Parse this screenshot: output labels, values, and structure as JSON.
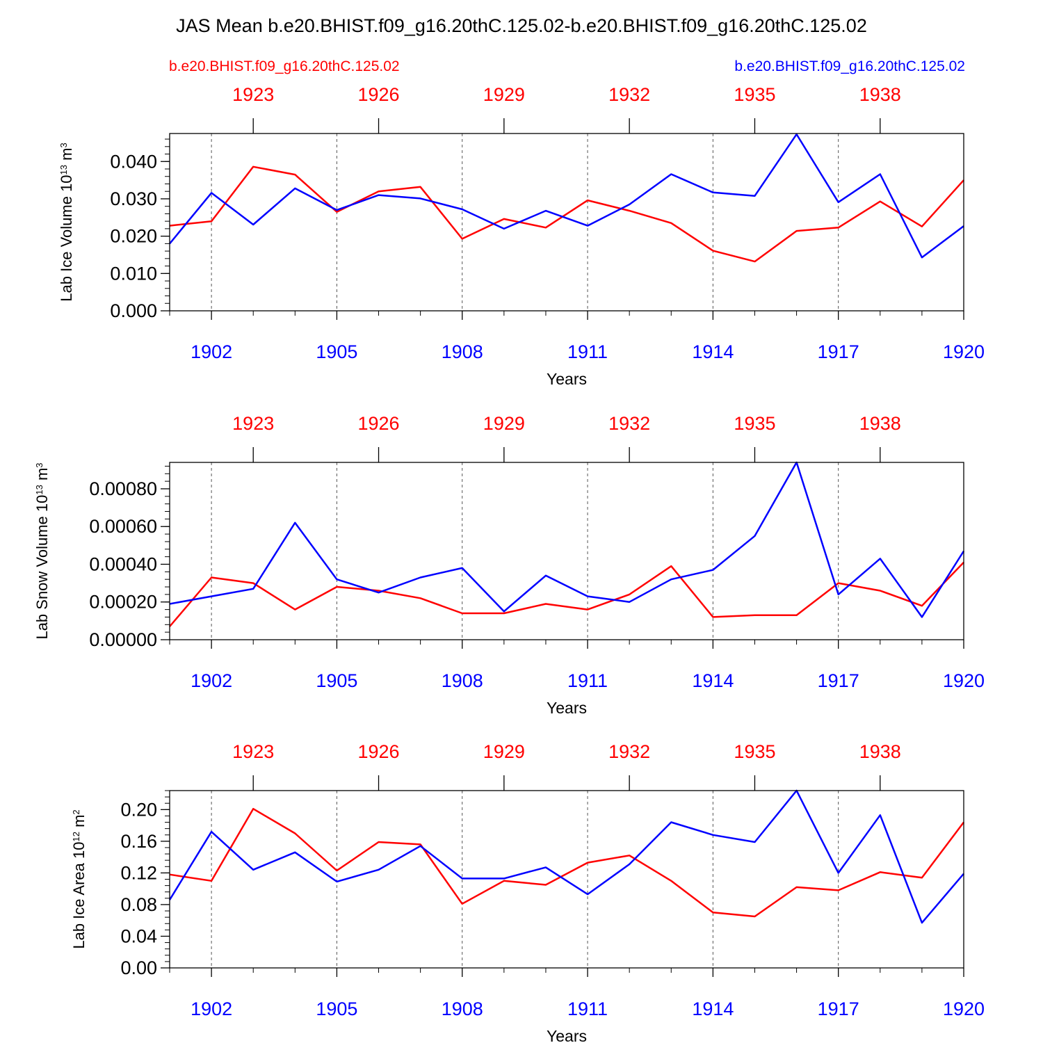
{
  "title": "JAS Mean b.e20.BHIST.f09_g16.20thC.125.02-b.e20.BHIST.f09_g16.20thC.125.02",
  "legend": {
    "left": "b.e20.BHIST.f09_g16.20thC.125.02",
    "right": "b.e20.BHIST.f09_g16.20thC.125.02"
  },
  "colors": {
    "red_series": "#ff0000",
    "blue_series": "#0000ff"
  },
  "chart_data": [
    {
      "type": "line",
      "ylabel": "Lab Ice Volume",
      "yunit_base": "10",
      "yunit_exp": "13",
      "yunit_unit": "m",
      "yunit_unit_exp": "3",
      "xlabel": "Years",
      "xlim": [
        1901,
        1920
      ],
      "ylim": [
        0,
        0.0475
      ],
      "yticks": [
        0.0,
        0.01,
        0.02,
        0.03,
        0.04
      ],
      "yticklabels": [
        "0.000",
        "0.010",
        "0.020",
        "0.030",
        "0.040"
      ],
      "yminor_step": 0.002,
      "xticks_bottom": [
        "1902",
        "1905",
        "1908",
        "1911",
        "1914",
        "1917",
        "1920"
      ],
      "xticks_top": [
        "1923",
        "1926",
        "1929",
        "1932",
        "1935",
        "1938"
      ],
      "x": [
        1901,
        1902,
        1903,
        1904,
        1905,
        1906,
        1907,
        1908,
        1909,
        1910,
        1911,
        1912,
        1913,
        1914,
        1915,
        1916,
        1917,
        1918,
        1919,
        1920
      ],
      "series": [
        {
          "name": "b.e20.BHIST.f09_g16.20thC.125.02 (1921-1940)",
          "color": "red",
          "values": [
            0.0228,
            0.024,
            0.0386,
            0.0365,
            0.0265,
            0.032,
            0.0332,
            0.0193,
            0.0246,
            0.0223,
            0.0296,
            0.0268,
            0.0235,
            0.0161,
            0.0132,
            0.0214,
            0.0223,
            0.0293,
            0.0226,
            0.035
          ]
        },
        {
          "name": "b.e20.BHIST.f09_g16.20thC.125.02 (1901-1920)",
          "color": "blue",
          "values": [
            0.018,
            0.0316,
            0.0231,
            0.0328,
            0.027,
            0.031,
            0.0301,
            0.0272,
            0.022,
            0.0268,
            0.0228,
            0.0285,
            0.0366,
            0.0317,
            0.0308,
            0.0473,
            0.0291,
            0.0366,
            0.0143,
            0.0227
          ]
        }
      ]
    },
    {
      "type": "line",
      "ylabel": "Lab Snow Volume",
      "yunit_base": "10",
      "yunit_exp": "13",
      "yunit_unit": "m",
      "yunit_unit_exp": "3",
      "xlabel": "Years",
      "xlim": [
        1901,
        1920
      ],
      "ylim": [
        0,
        0.00094
      ],
      "yticks": [
        0.0,
        0.0002,
        0.0004,
        0.0006,
        0.0008
      ],
      "yticklabels": [
        "0.00000",
        "0.00020",
        "0.00040",
        "0.00060",
        "0.00080"
      ],
      "yminor_step": 4e-05,
      "xticks_bottom": [
        "1902",
        "1905",
        "1908",
        "1911",
        "1914",
        "1917",
        "1920"
      ],
      "xticks_top": [
        "1923",
        "1926",
        "1929",
        "1932",
        "1935",
        "1938"
      ],
      "x": [
        1901,
        1902,
        1903,
        1904,
        1905,
        1906,
        1907,
        1908,
        1909,
        1910,
        1911,
        1912,
        1913,
        1914,
        1915,
        1916,
        1917,
        1918,
        1919,
        1920
      ],
      "series": [
        {
          "name": "b.e20.BHIST.f09_g16.20thC.125.02 (1921-1940)",
          "color": "red",
          "values": [
            7e-05,
            0.00033,
            0.0003,
            0.00016,
            0.00028,
            0.00026,
            0.00022,
            0.00014,
            0.00014,
            0.00019,
            0.00016,
            0.00024,
            0.00039,
            0.00012,
            0.00013,
            0.00013,
            0.0003,
            0.00026,
            0.00018,
            0.00041
          ]
        },
        {
          "name": "b.e20.BHIST.f09_g16.20thC.125.02 (1901-1920)",
          "color": "blue",
          "values": [
            0.00019,
            0.00023,
            0.00027,
            0.00062,
            0.00032,
            0.00025,
            0.00033,
            0.00038,
            0.00015,
            0.00034,
            0.00023,
            0.0002,
            0.00032,
            0.00037,
            0.00055,
            0.00094,
            0.00024,
            0.00043,
            0.00012,
            0.00047
          ]
        }
      ]
    },
    {
      "type": "line",
      "ylabel": "Lab Ice Area",
      "yunit_base": "10",
      "yunit_exp": "12",
      "yunit_unit": "m",
      "yunit_unit_exp": "2",
      "xlabel": "Years",
      "xlim": [
        1901,
        1920
      ],
      "ylim": [
        0,
        0.224
      ],
      "yticks": [
        0.0,
        0.04,
        0.08,
        0.12,
        0.16,
        0.2
      ],
      "yticklabels": [
        "0.00",
        "0.04",
        "0.08",
        "0.12",
        "0.16",
        "0.20"
      ],
      "yminor_step": 0.008,
      "xticks_bottom": [
        "1902",
        "1905",
        "1908",
        "1911",
        "1914",
        "1917",
        "1920"
      ],
      "xticks_top": [
        "1923",
        "1926",
        "1929",
        "1932",
        "1935",
        "1938"
      ],
      "x": [
        1901,
        1902,
        1903,
        1904,
        1905,
        1906,
        1907,
        1908,
        1909,
        1910,
        1911,
        1912,
        1913,
        1914,
        1915,
        1916,
        1917,
        1918,
        1919,
        1920
      ],
      "series": [
        {
          "name": "b.e20.BHIST.f09_g16.20thC.125.02 (1921-1940)",
          "color": "red",
          "values": [
            0.118,
            0.11,
            0.201,
            0.17,
            0.123,
            0.159,
            0.156,
            0.081,
            0.11,
            0.105,
            0.133,
            0.142,
            0.11,
            0.07,
            0.065,
            0.102,
            0.098,
            0.121,
            0.114,
            0.184
          ]
        },
        {
          "name": "b.e20.BHIST.f09_g16.20thC.125.02 (1901-1920)",
          "color": "blue",
          "values": [
            0.086,
            0.172,
            0.124,
            0.146,
            0.109,
            0.124,
            0.154,
            0.113,
            0.113,
            0.127,
            0.093,
            0.131,
            0.184,
            0.168,
            0.159,
            0.224,
            0.12,
            0.193,
            0.057,
            0.119
          ]
        }
      ]
    }
  ]
}
